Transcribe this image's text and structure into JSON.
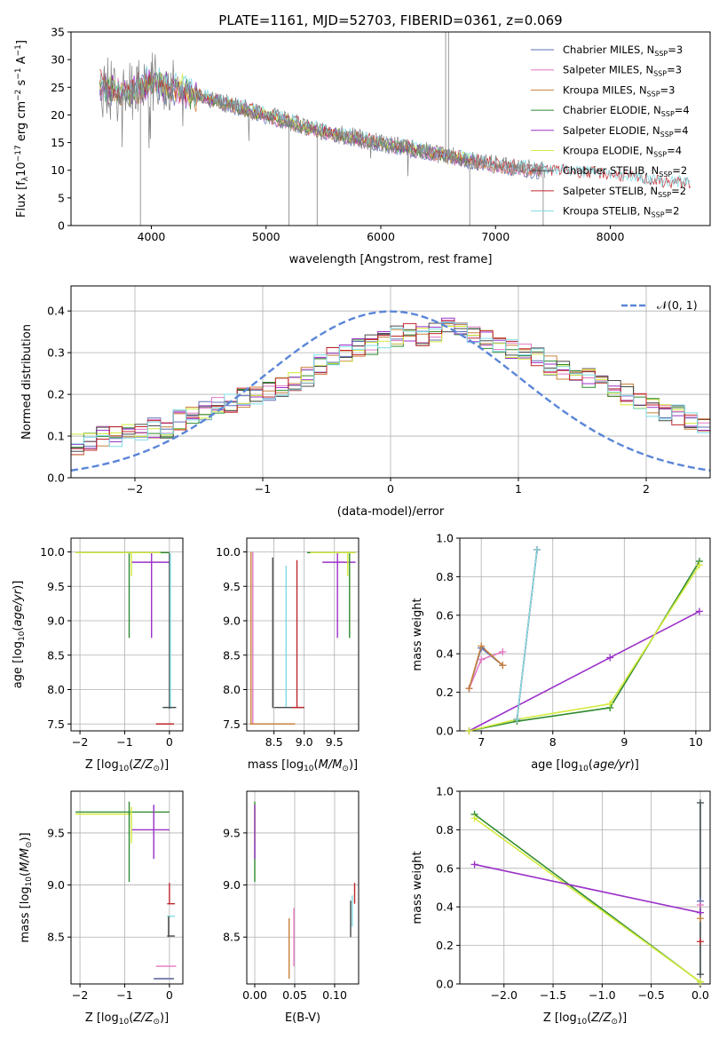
{
  "title": "PLATE=1161, MJD=52703, FIBERID=0361, z=0.069",
  "colors": {
    "axis": "#000000",
    "grid": "#b0b0b0",
    "gaussian": "#5b86d8",
    "data_spectrum": "#7f7f7f"
  },
  "models": [
    {
      "name": "Chabrier MILES",
      "nssp": "3",
      "color": "#5c6fb3"
    },
    {
      "name": "Salpeter MILES",
      "nssp": "3",
      "color": "#e377c2"
    },
    {
      "name": "Kroupa MILES",
      "nssp": "3",
      "color": "#c8813b"
    },
    {
      "name": "Chabrier ELODIE",
      "nssp": "4",
      "color": "#2e8b2e"
    },
    {
      "name": "Salpeter ELODIE",
      "nssp": "4",
      "color": "#9b30c9"
    },
    {
      "name": "Kroupa ELODIE",
      "nssp": "4",
      "color": "#d4ea3c"
    },
    {
      "name": "Chabrier STELIB",
      "nssp": "2",
      "color": "#4a4a4a"
    },
    {
      "name": "Salpeter STELIB",
      "nssp": "2",
      "color": "#c0262c"
    },
    {
      "name": "Kroupa STELIB",
      "nssp": "2",
      "color": "#7fdbe6"
    }
  ],
  "chart_data": [
    {
      "id": "spectrum",
      "type": "line",
      "xlabel": "wavelength [Angstrom, rest frame]",
      "ylabel": "Flux [f_λ 10^-17 erg cm^-2 s^-1 A^-1]",
      "xlim": [
        3300,
        8870
      ],
      "ylim": [
        0,
        35
      ],
      "xticks": [
        4000,
        5000,
        6000,
        7000,
        8000
      ],
      "yticks": [
        0,
        5,
        10,
        15,
        20,
        25,
        30,
        35
      ],
      "grid": false,
      "legend": "upper right",
      "continuum_x": [
        3600,
        3800,
        4000,
        4200,
        4500,
        5000,
        5500,
        6000,
        6500,
        7000,
        7400,
        8000,
        8500
      ],
      "continuum_y": [
        25,
        24,
        26,
        25,
        23,
        20,
        17,
        15,
        13,
        11,
        10,
        9,
        7.5
      ]
    },
    {
      "id": "residuals",
      "type": "line",
      "xlabel": "(data-model)/error",
      "ylabel": "Normed distribution",
      "xlim": [
        -2.5,
        2.5
      ],
      "ylim": [
        0,
        0.46
      ],
      "xticks": [
        -2,
        -1,
        0,
        1,
        2
      ],
      "yticks": [
        0.0,
        0.1,
        0.2,
        0.3,
        0.4
      ],
      "grid": true,
      "legend": "upper right",
      "gaussian_label": "𝒩(0, 1)",
      "bin_edges_start": -2.5,
      "bin_width": 0.1,
      "envelope": [
        0.08,
        0.09,
        0.1,
        0.1,
        0.11,
        0.11,
        0.12,
        0.12,
        0.14,
        0.15,
        0.16,
        0.17,
        0.18,
        0.19,
        0.2,
        0.21,
        0.22,
        0.23,
        0.24,
        0.27,
        0.29,
        0.3,
        0.31,
        0.32,
        0.33,
        0.34,
        0.35,
        0.34,
        0.35,
        0.36,
        0.35,
        0.34,
        0.33,
        0.32,
        0.31,
        0.3,
        0.29,
        0.27,
        0.26,
        0.25,
        0.24,
        0.22,
        0.21,
        0.2,
        0.19,
        0.17,
        0.16,
        0.15,
        0.14,
        0.13,
        0.12,
        0.11,
        0.1,
        0.09,
        0.08,
        0.08,
        0.07,
        0.07,
        0.06,
        0.06,
        0.05,
        0.05,
        0.04,
        0.04,
        0.04,
        0.04,
        0.03,
        0.03,
        0.03,
        0.03
      ]
    },
    {
      "id": "age_vs_z",
      "type": "scatter",
      "xlabel": "Z [log10(Z/Z⊙)]",
      "ylabel": "age [log10(age/yr)]",
      "xlim": [
        -2.2,
        0.3
      ],
      "ylim": [
        7.4,
        10.2
      ],
      "xticks": [
        -2,
        -1,
        0
      ],
      "yticks": [
        7.5,
        8.0,
        8.5,
        9.0,
        9.5,
        10.0
      ],
      "grid": true,
      "bars": [
        {
          "model": 3,
          "orient": "h",
          "x": [
            -2.1,
            0.0
          ],
          "y": 9.99
        },
        {
          "model": 5,
          "orient": "h",
          "x": [
            -2.1,
            -0.2
          ],
          "y": 9.99
        },
        {
          "model": 4,
          "orient": "h",
          "x": [
            -0.85,
            0.0
          ],
          "y": 9.85
        },
        {
          "model": 4,
          "orient": "v",
          "x": -0.4,
          "y": [
            8.75,
            9.98
          ]
        },
        {
          "model": 3,
          "orient": "v",
          "x": -0.9,
          "y": [
            8.75,
            9.98
          ]
        },
        {
          "model": 5,
          "orient": "v",
          "x": -0.85,
          "y": [
            9.65,
            9.98
          ]
        },
        {
          "model": 6,
          "orient": "v",
          "x": 0.0,
          "y": [
            7.72,
            9.98
          ]
        },
        {
          "model": 8,
          "orient": "v",
          "x": 0.02,
          "y": [
            7.72,
            9.98
          ]
        },
        {
          "model": 8,
          "orient": "h",
          "x": [
            -0.15,
            0.15
          ],
          "y": 7.74
        },
        {
          "model": 6,
          "orient": "h",
          "x": [
            -0.15,
            0.15
          ],
          "y": 7.74
        },
        {
          "model": 2,
          "orient": "h",
          "x": [
            -0.3,
            0.1
          ],
          "y": 7.5
        },
        {
          "model": 7,
          "orient": "h",
          "x": [
            -0.3,
            0.1
          ],
          "y": 7.5
        }
      ]
    },
    {
      "id": "age_vs_mass",
      "type": "scatter",
      "xlabel": "mass [log10(M/M⊙)]",
      "ylabel": "",
      "xlim": [
        8.05,
        9.9
      ],
      "ylim": [
        7.4,
        10.2
      ],
      "xticks": [
        8.5,
        9.0,
        9.5
      ],
      "yticks": [
        7.5,
        8.0,
        8.5,
        9.0,
        9.5,
        10.0
      ],
      "grid": true,
      "bars": [
        {
          "model": 1,
          "orient": "v",
          "x": 8.15,
          "y": [
            7.5,
            10.0
          ]
        },
        {
          "model": 2,
          "orient": "v",
          "x": 8.12,
          "y": [
            7.5,
            10.0
          ]
        },
        {
          "model": 2,
          "orient": "h",
          "x": [
            8.1,
            8.85
          ],
          "y": 7.5
        },
        {
          "model": 6,
          "orient": "v",
          "x": 8.48,
          "y": [
            7.73,
            9.92
          ]
        },
        {
          "model": 8,
          "orient": "v",
          "x": 8.7,
          "y": [
            7.73,
            9.8
          ]
        },
        {
          "model": 7,
          "orient": "v",
          "x": 8.88,
          "y": [
            7.73,
            9.88
          ]
        },
        {
          "model": 6,
          "orient": "h",
          "x": [
            8.5,
            9.0
          ],
          "y": 7.74
        },
        {
          "model": 7,
          "orient": "h",
          "x": [
            8.8,
            9.0
          ],
          "y": 7.74
        },
        {
          "model": 3,
          "orient": "h",
          "x": [
            9.05,
            9.85
          ],
          "y": 9.99
        },
        {
          "model": 5,
          "orient": "h",
          "x": [
            9.1,
            9.85
          ],
          "y": 9.99
        },
        {
          "model": 4,
          "orient": "h",
          "x": [
            9.3,
            9.85
          ],
          "y": 9.85
        },
        {
          "model": 4,
          "orient": "v",
          "x": 9.55,
          "y": [
            8.75,
            9.98
          ]
        },
        {
          "model": 3,
          "orient": "v",
          "x": 9.75,
          "y": [
            8.75,
            9.98
          ]
        },
        {
          "model": 5,
          "orient": "v",
          "x": 9.72,
          "y": [
            9.65,
            9.98
          ]
        }
      ]
    },
    {
      "id": "weight_vs_age",
      "type": "line",
      "xlabel": "age [log10(age/yr)]",
      "ylabel": "mass weight",
      "xlim": [
        6.7,
        10.2
      ],
      "ylim": [
        0,
        1.0
      ],
      "xticks": [
        7,
        8,
        9,
        10
      ],
      "yticks": [
        0.0,
        0.2,
        0.4,
        0.6,
        0.8,
        1.0
      ],
      "grid": true,
      "series": [
        {
          "model": 0,
          "x": [
            6.83,
            7.0,
            7.3
          ],
          "y": [
            0.22,
            0.43,
            0.34
          ]
        },
        {
          "model": 1,
          "x": [
            6.83,
            7.0,
            7.3
          ],
          "y": [
            0.22,
            0.37,
            0.41
          ]
        },
        {
          "model": 2,
          "x": [
            6.83,
            7.0,
            7.3
          ],
          "y": [
            0.22,
            0.44,
            0.34
          ]
        },
        {
          "model": 3,
          "x": [
            6.83,
            7.5,
            8.8,
            10.05
          ],
          "y": [
            0.0,
            0.05,
            0.12,
            0.88
          ]
        },
        {
          "model": 4,
          "x": [
            6.83,
            8.8,
            10.05
          ],
          "y": [
            0.0,
            0.38,
            0.62
          ]
        },
        {
          "model": 5,
          "x": [
            6.83,
            7.5,
            8.8,
            10.05
          ],
          "y": [
            0.0,
            0.06,
            0.14,
            0.86
          ]
        },
        {
          "model": 6,
          "x": [
            7.5,
            7.78
          ],
          "y": [
            0.06,
            0.94
          ]
        },
        {
          "model": 7,
          "x": [
            7.5,
            7.78
          ],
          "y": [
            0.06,
            0.94
          ]
        },
        {
          "model": 8,
          "x": [
            7.5,
            7.78
          ],
          "y": [
            0.06,
            0.94
          ]
        }
      ]
    },
    {
      "id": "mass_vs_z",
      "type": "scatter",
      "xlabel": "Z [log10(Z/Z⊙)]",
      "ylabel": "mass [log10(M/M⊙)]",
      "xlim": [
        -2.2,
        0.3
      ],
      "ylim": [
        8.05,
        9.9
      ],
      "xticks": [
        -2,
        -1,
        0
      ],
      "yticks": [
        8.5,
        9.0,
        9.5
      ],
      "grid": true,
      "bars": [
        {
          "model": 3,
          "orient": "h",
          "x": [
            -2.1,
            0.0
          ],
          "y": 9.7
        },
        {
          "model": 5,
          "orient": "h",
          "x": [
            -2.1,
            -0.85
          ],
          "y": 9.68
        },
        {
          "model": 4,
          "orient": "h",
          "x": [
            -0.85,
            0.0
          ],
          "y": 9.53
        },
        {
          "model": 3,
          "orient": "v",
          "x": -0.9,
          "y": [
            9.03,
            9.8
          ]
        },
        {
          "model": 5,
          "orient": "v",
          "x": -0.85,
          "y": [
            9.4,
            9.75
          ]
        },
        {
          "model": 4,
          "orient": "v",
          "x": -0.35,
          "y": [
            9.25,
            9.77
          ]
        },
        {
          "model": 7,
          "orient": "v",
          "x": 0.0,
          "y": [
            8.82,
            9.02
          ]
        },
        {
          "model": 7,
          "orient": "h",
          "x": [
            -0.05,
            0.12
          ],
          "y": 8.82
        },
        {
          "model": 8,
          "orient": "h",
          "x": [
            -0.05,
            0.12
          ],
          "y": 8.7
        },
        {
          "model": 6,
          "orient": "v",
          "x": -0.02,
          "y": [
            8.5,
            8.7
          ]
        },
        {
          "model": 6,
          "orient": "h",
          "x": [
            -0.05,
            0.12
          ],
          "y": 8.51
        },
        {
          "model": 1,
          "orient": "h",
          "x": [
            -0.3,
            0.15
          ],
          "y": 8.22
        },
        {
          "model": 2,
          "orient": "h",
          "x": [
            -0.35,
            0.1
          ],
          "y": 8.1
        },
        {
          "model": 0,
          "orient": "h",
          "x": [
            -0.35,
            0.1
          ],
          "y": 8.1
        }
      ]
    },
    {
      "id": "mass_vs_ebv",
      "type": "scatter",
      "xlabel": "E(B-V)",
      "ylabel": "",
      "xlim": [
        -0.01,
        0.13
      ],
      "ylim": [
        8.05,
        9.9
      ],
      "xticks": [
        0.0,
        0.05,
        0.1
      ],
      "yticks": [
        8.5,
        9.0,
        9.5
      ],
      "grid": true,
      "bars": [
        {
          "model": 3,
          "orient": "v",
          "x": 0.0,
          "y": [
            9.03,
            9.8
          ]
        },
        {
          "model": 5,
          "orient": "v",
          "x": 0.0,
          "y": [
            9.4,
            9.75
          ]
        },
        {
          "model": 4,
          "orient": "v",
          "x": 0.0,
          "y": [
            9.25,
            9.77
          ]
        },
        {
          "model": 2,
          "orient": "v",
          "x": 0.043,
          "y": [
            8.1,
            8.68
          ]
        },
        {
          "model": 1,
          "orient": "v",
          "x": 0.049,
          "y": [
            8.22,
            8.78
          ]
        },
        {
          "model": 6,
          "orient": "v",
          "x": 0.12,
          "y": [
            8.5,
            8.85
          ]
        },
        {
          "model": 8,
          "orient": "v",
          "x": 0.122,
          "y": [
            8.6,
            8.9
          ]
        },
        {
          "model": 7,
          "orient": "v",
          "x": 0.125,
          "y": [
            8.82,
            9.02
          ]
        }
      ]
    },
    {
      "id": "weight_vs_z",
      "type": "line",
      "xlabel": "Z [log10(Z/Z⊙)]",
      "ylabel": "mass weight",
      "xlim": [
        -2.45,
        0.1
      ],
      "ylim": [
        0,
        1.0
      ],
      "xticks": [
        -2.0,
        -1.5,
        -1.0,
        -0.5,
        0.0
      ],
      "yticks": [
        0.0,
        0.2,
        0.4,
        0.6,
        0.8,
        1.0
      ],
      "grid": true,
      "series": [
        {
          "model": 3,
          "x": [
            -2.3,
            0.0
          ],
          "y": [
            0.88,
            0.01
          ]
        },
        {
          "model": 5,
          "x": [
            -2.3,
            0.0
          ],
          "y": [
            0.86,
            0.01
          ]
        },
        {
          "model": 4,
          "x": [
            -2.3,
            0.0
          ],
          "y": [
            0.62,
            0.37
          ]
        },
        {
          "model": 8,
          "x": [
            0.0,
            0.0
          ],
          "y": [
            0.05,
            0.94
          ]
        },
        {
          "model": 6,
          "x": [
            0.0,
            0.0
          ],
          "y": [
            0.05,
            0.94
          ]
        },
        {
          "model": 0,
          "x": [
            0.0
          ],
          "y": [
            0.43
          ]
        },
        {
          "model": 2,
          "x": [
            0.0
          ],
          "y": [
            0.34
          ]
        },
        {
          "model": 1,
          "x": [
            0.0
          ],
          "y": [
            0.41
          ]
        },
        {
          "model": 7,
          "x": [
            0.0
          ],
          "y": [
            0.22
          ]
        }
      ]
    }
  ]
}
